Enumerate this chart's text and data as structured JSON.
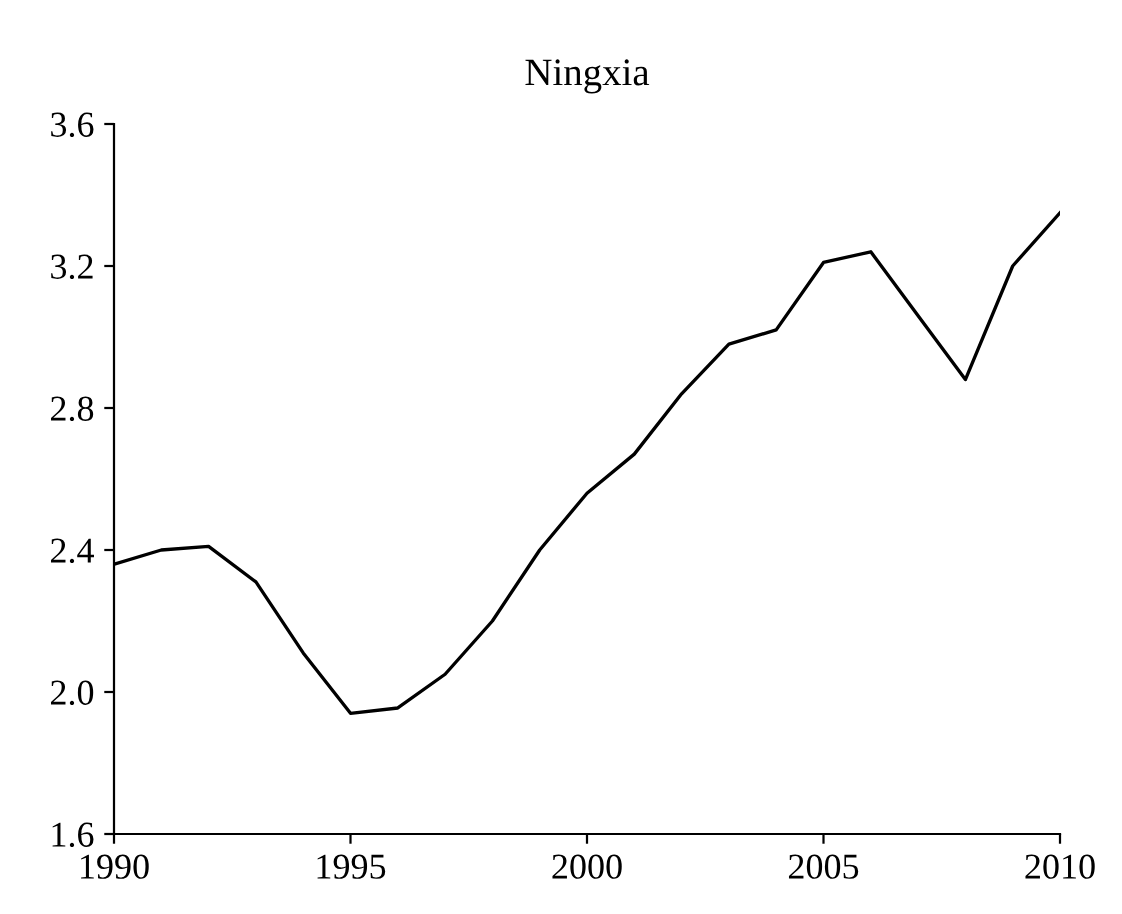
{
  "chart_data": {
    "type": "line",
    "title": "Ningxia",
    "x": [
      1990,
      1991,
      1992,
      1993,
      1994,
      1995,
      1996,
      1997,
      1998,
      1999,
      2000,
      2001,
      2002,
      2003,
      2004,
      2005,
      2006,
      2007,
      2008,
      2009,
      2010
    ],
    "series": [
      {
        "color": "#000000",
        "values": [
          2.36,
          2.4,
          2.41,
          2.31,
          2.11,
          1.94,
          1.955,
          2.05,
          2.2,
          2.4,
          2.56,
          2.67,
          2.84,
          2.98,
          3.02,
          3.21,
          3.24,
          3.06,
          2.88,
          3.2,
          3.35
        ]
      }
    ],
    "xlim": [
      1990,
      2010
    ],
    "xticks": [
      1990,
      1995,
      2000,
      2005,
      2010
    ],
    "ylim": [
      1.6,
      3.6
    ],
    "yticks": [
      {
        "value": 1.6,
        "label": "1.6"
      },
      {
        "value": 2.0,
        "label": "2.0"
      },
      {
        "value": 2.4,
        "label": "2.4"
      },
      {
        "value": 2.8,
        "label": "2.8"
      },
      {
        "value": 3.2,
        "label": "3.2"
      },
      {
        "value": 3.6,
        "label": "3.6"
      }
    ],
    "grid": false,
    "legend": false
  }
}
